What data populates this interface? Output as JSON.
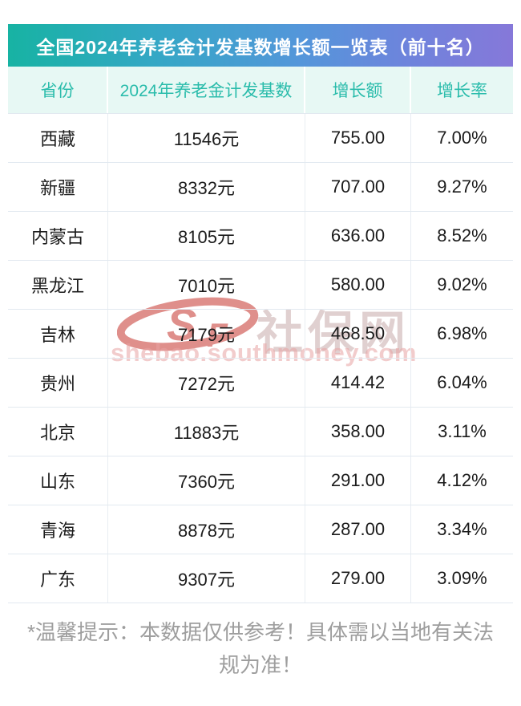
{
  "chart_data": {
    "type": "table",
    "title": "全国2024年养老金计发基数增长额一览表（前十名）",
    "columns": [
      "省份",
      "2024年养老金计发基数",
      "增长额",
      "增长率"
    ],
    "rows": [
      [
        "西藏",
        "11546元",
        "755.00",
        "7.00%"
      ],
      [
        "新疆",
        "8332元",
        "707.00",
        "9.27%"
      ],
      [
        "内蒙古",
        "8105元",
        "636.00",
        "8.52%"
      ],
      [
        "黑龙江",
        "7010元",
        "580.00",
        "9.02%"
      ],
      [
        "吉林",
        "7179元",
        "468.50",
        "6.98%"
      ],
      [
        "贵州",
        "7272元",
        "414.42",
        "6.04%"
      ],
      [
        "北京",
        "11883元",
        "358.00",
        "3.11%"
      ],
      [
        "山东",
        "7360元",
        "291.00",
        "4.12%"
      ],
      [
        "青海",
        "8878元",
        "287.00",
        "3.34%"
      ],
      [
        "广东",
        "9307元",
        "279.00",
        "3.09%"
      ]
    ]
  },
  "watermark": {
    "logo_letter_1": "S",
    "logo_letter_2": "F",
    "site_name": "社保网",
    "url": "shebao.southmoney.com"
  },
  "footer_note": "*温馨提示：本数据仅供参考！具体需以当地有关法规为准！",
  "colors": {
    "title_gradient_start": "#17b3a3",
    "title_gradient_mid": "#5496da",
    "title_gradient_end": "#8678d9",
    "header_bg": "#e7f8f4",
    "header_text": "#2abcab",
    "row_divider": "#e2e9f0",
    "cell_text": "#1b1b1b",
    "footer_text": "#9e9e9e",
    "watermark_red": "#c5342e"
  }
}
